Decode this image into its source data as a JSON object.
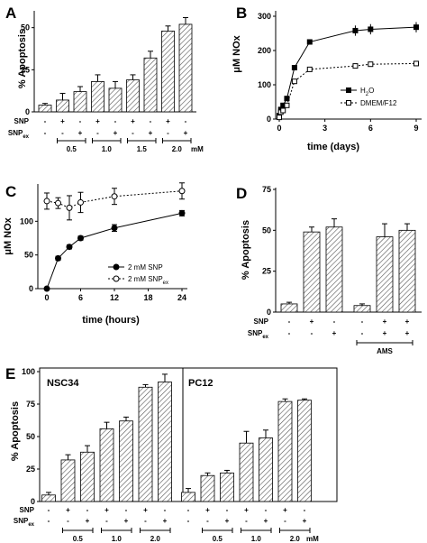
{
  "chart_data": [
    {
      "panel": "A",
      "type": "bar",
      "ylabel": "% Apoptosis",
      "ylim": [
        0,
        60
      ],
      "yticks": [
        0,
        25,
        50
      ],
      "values": [
        4,
        7,
        12,
        18,
        14,
        19,
        32,
        48,
        52
      ],
      "errors": [
        1,
        4,
        3,
        4,
        4,
        3,
        4,
        3,
        4
      ],
      "condition_rows": [
        {
          "label": "SNP",
          "marks": [
            "-",
            "+",
            "-",
            "+",
            "-",
            "+",
            "-",
            "+",
            "-"
          ]
        },
        {
          "label": "SNPex",
          "marks": [
            "-",
            "-",
            "+",
            "-",
            "+",
            "-",
            "+",
            "-",
            "+"
          ]
        }
      ],
      "groups": [
        {
          "label": "0.5",
          "from": 1,
          "to": 2
        },
        {
          "label": "1.0",
          "from": 3,
          "to": 4
        },
        {
          "label": "1.5",
          "from": 5,
          "to": 6
        },
        {
          "label": "2.0",
          "from": 7,
          "to": 8
        }
      ],
      "unit": "mM"
    },
    {
      "panel": "B",
      "type": "line",
      "xlabel": "time (days)",
      "ylabel": "μM NOx",
      "xlim": [
        0,
        9
      ],
      "ylim": [
        0,
        300
      ],
      "xticks": [
        0,
        3,
        6,
        9
      ],
      "yticks": [
        0,
        100,
        200,
        300
      ],
      "series": [
        {
          "name": "H2O",
          "style": "solid",
          "marker": "filled-square",
          "x": [
            0,
            0.1,
            0.25,
            0.5,
            1,
            2,
            5,
            6,
            9
          ],
          "y": [
            10,
            28,
            40,
            60,
            150,
            225,
            258,
            262,
            268
          ],
          "err": [
            0,
            4,
            6,
            5,
            6,
            6,
            15,
            15,
            15
          ]
        },
        {
          "name": "DMEM/F12",
          "style": "dotted",
          "marker": "open-square",
          "x": [
            0,
            0.1,
            0.25,
            0.5,
            1,
            2,
            5,
            6,
            9
          ],
          "y": [
            5,
            20,
            25,
            40,
            110,
            145,
            155,
            160,
            162
          ],
          "err": [
            0,
            3,
            3,
            4,
            5,
            5,
            5,
            5,
            5
          ]
        }
      ]
    },
    {
      "panel": "C",
      "type": "line",
      "xlabel": "time (hours)",
      "ylabel": "μM NOx",
      "xlim": [
        0,
        24
      ],
      "ylim": [
        0,
        150
      ],
      "xticks": [
        0,
        6,
        12,
        18,
        24
      ],
      "yticks": [
        0,
        50,
        100
      ],
      "series": [
        {
          "name": "2 mM SNP",
          "style": "solid",
          "marker": "filled-circle",
          "x": [
            0,
            2,
            4,
            6,
            12,
            24
          ],
          "y": [
            0,
            45,
            62,
            75,
            90,
            112
          ],
          "err": [
            0,
            3,
            3,
            3,
            5,
            4
          ]
        },
        {
          "name": "2 mM SNPex",
          "style": "dotted",
          "marker": "open-circle",
          "x": [
            0,
            2,
            4,
            6,
            12,
            24
          ],
          "y": [
            130,
            127,
            120,
            128,
            137,
            145
          ],
          "err": [
            12,
            8,
            18,
            15,
            12,
            12
          ]
        }
      ]
    },
    {
      "panel": "D",
      "type": "bar",
      "ylabel": "% Apoptosis",
      "ylim": [
        0,
        75
      ],
      "yticks": [
        0,
        25,
        50,
        75
      ],
      "values": [
        5,
        49,
        52,
        4,
        46,
        50
      ],
      "errors": [
        1,
        3,
        5,
        1,
        8,
        4
      ],
      "condition_rows": [
        {
          "label": "SNP",
          "marks": [
            "-",
            "+",
            "-",
            "-",
            "+",
            "+"
          ]
        },
        {
          "label": "SNPex",
          "marks": [
            "-",
            "-",
            "+",
            "-",
            "+",
            "+"
          ]
        }
      ],
      "groups": [
        {
          "label": "AMS",
          "from": 3,
          "to": 5
        }
      ]
    },
    {
      "panel": "E",
      "type": "bar",
      "ylabel": "% Apoptosis",
      "ylim": [
        0,
        100
      ],
      "yticks": [
        0,
        25,
        50,
        75,
        100
      ],
      "subpanels": [
        {
          "name": "NSC34",
          "values": [
            5,
            32,
            38,
            56,
            62,
            88,
            92
          ],
          "errors": [
            2,
            4,
            5,
            5,
            3,
            2,
            6
          ]
        },
        {
          "name": "PC12",
          "values": [
            7,
            20,
            22,
            45,
            49,
            77,
            78
          ],
          "errors": [
            3,
            2,
            2,
            9,
            6,
            2,
            1
          ]
        }
      ],
      "condition_rows": [
        {
          "label": "SNP",
          "marks": [
            "-",
            "+",
            "-",
            "+",
            "-",
            "+",
            "-"
          ]
        },
        {
          "label": "SNPex",
          "marks": [
            "-",
            "-",
            "+",
            "-",
            "+",
            "-",
            "+"
          ]
        }
      ],
      "groups": [
        {
          "label": "0.5",
          "from": 1,
          "to": 2
        },
        {
          "label": "1.0",
          "from": 3,
          "to": 4
        },
        {
          "label": "2.0",
          "from": 5,
          "to": 6
        }
      ],
      "unit": "mM"
    }
  ]
}
